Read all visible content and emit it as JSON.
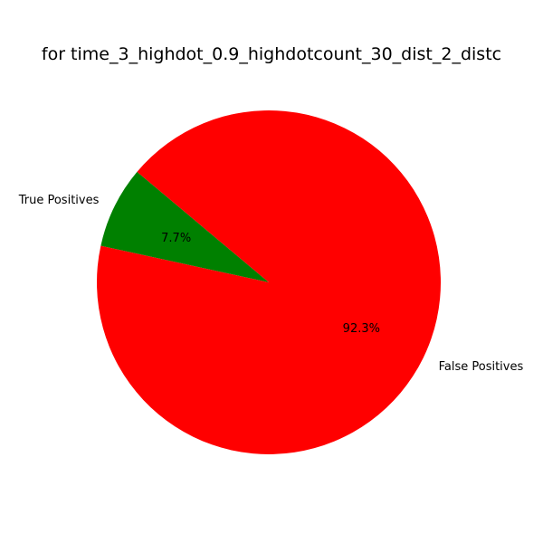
{
  "chart_data": {
    "type": "pie",
    "title": "for time_3_highdot_0.9_highdotcount_30_dist_2_distc",
    "slices": [
      {
        "label": "True Positives",
        "value": 7.7,
        "percent_label": "7.7%",
        "color": "#008000"
      },
      {
        "label": "False Positives",
        "value": 92.3,
        "percent_label": "92.3%",
        "color": "#ff0000"
      }
    ],
    "start_angle_deg": 140,
    "direction": "counterclockwise",
    "legend": "none"
  }
}
